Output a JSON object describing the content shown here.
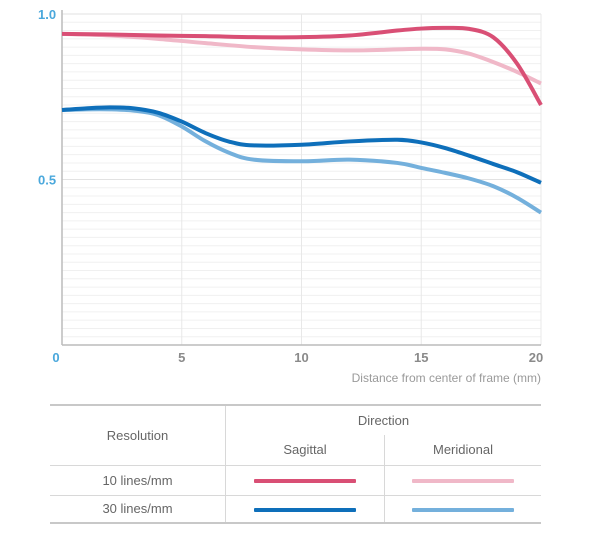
{
  "chart_data": {
    "type": "line",
    "xlabel": "Distance from center of frame (mm)",
    "ylabel": "",
    "xlim": [
      0,
      20
    ],
    "ylim": [
      0,
      1.0
    ],
    "x_ticks": [
      "0",
      "5",
      "10",
      "15",
      "20"
    ],
    "y_ticks": [
      "1.0",
      "0.5"
    ],
    "grid": true,
    "series": [
      {
        "name": "10 lines/mm Sagittal",
        "color": "#d94f75",
        "x": [
          0,
          2,
          4,
          6,
          8,
          10,
          12,
          14,
          15,
          16,
          17,
          18,
          19,
          20
        ],
        "y": [
          0.94,
          0.938,
          0.935,
          0.933,
          0.93,
          0.93,
          0.935,
          0.95,
          0.956,
          0.958,
          0.955,
          0.93,
          0.85,
          0.725
        ]
      },
      {
        "name": "10 lines/mm Meridional",
        "color": "#f0b8c8",
        "x": [
          0,
          2,
          4,
          6,
          8,
          10,
          12,
          14,
          15,
          16,
          17,
          18,
          19,
          20
        ],
        "y": [
          0.94,
          0.935,
          0.925,
          0.912,
          0.9,
          0.893,
          0.89,
          0.893,
          0.895,
          0.893,
          0.88,
          0.855,
          0.825,
          0.79
        ]
      },
      {
        "name": "30 lines/mm Sagittal",
        "color": "#0e6fba",
        "x": [
          0,
          1,
          2,
          3,
          4,
          5,
          6,
          7,
          8,
          10,
          12,
          14,
          15,
          16,
          17,
          18,
          19,
          20
        ],
        "y": [
          0.71,
          0.715,
          0.718,
          0.715,
          0.702,
          0.675,
          0.64,
          0.614,
          0.603,
          0.605,
          0.615,
          0.62,
          0.612,
          0.595,
          0.572,
          0.547,
          0.522,
          0.49
        ]
      },
      {
        "name": "30 lines/mm Meridional",
        "color": "#74b0dc",
        "x": [
          0,
          1,
          2,
          3,
          4,
          5,
          6,
          7,
          8,
          10,
          12,
          14,
          15,
          16,
          17,
          18,
          19,
          20
        ],
        "y": [
          0.71,
          0.712,
          0.712,
          0.708,
          0.695,
          0.66,
          0.615,
          0.58,
          0.56,
          0.555,
          0.56,
          0.55,
          0.535,
          0.52,
          0.503,
          0.48,
          0.445,
          0.4
        ]
      }
    ]
  },
  "legend": {
    "direction_label": "Direction",
    "resolution_label": "Resolution",
    "sagittal_label": "Sagittal",
    "meridional_label": "Meridional",
    "rows": [
      {
        "label": "10 lines/mm",
        "sagittal_color": "#d94f75",
        "meridional_color": "#f0b8c8"
      },
      {
        "label": "30 lines/mm",
        "sagittal_color": "#0e6fba",
        "meridional_color": "#74b0dc"
      }
    ]
  }
}
